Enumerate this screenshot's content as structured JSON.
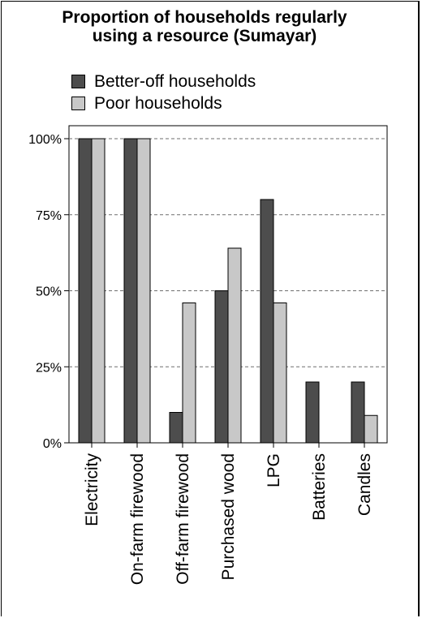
{
  "chart_data": {
    "type": "bar",
    "title_lines": [
      "Proportion of households regularly",
      "using a resource (Sumayar)"
    ],
    "xlabel": "",
    "ylabel": "",
    "categories": [
      "Electricity",
      "On-farm firewood",
      "Off-farm firewood",
      "Purchased wood",
      "LPG",
      "Batteries",
      "Candles"
    ],
    "series": [
      {
        "name": "Better-off households",
        "color": "#4d4d4d",
        "values": [
          100,
          100,
          10,
          50,
          80,
          20,
          20
        ]
      },
      {
        "name": "Poor households",
        "color": "#c8c8c8",
        "values": [
          100,
          100,
          46,
          64,
          46,
          0,
          9
        ]
      }
    ],
    "ylim": [
      0,
      100
    ],
    "yticks": [
      0,
      25,
      50,
      75,
      100
    ],
    "ytick_labels": [
      "0%",
      "25%",
      "50%",
      "75%",
      "100%"
    ],
    "grid": "horizontal dashed",
    "legend_position": "top-left"
  }
}
